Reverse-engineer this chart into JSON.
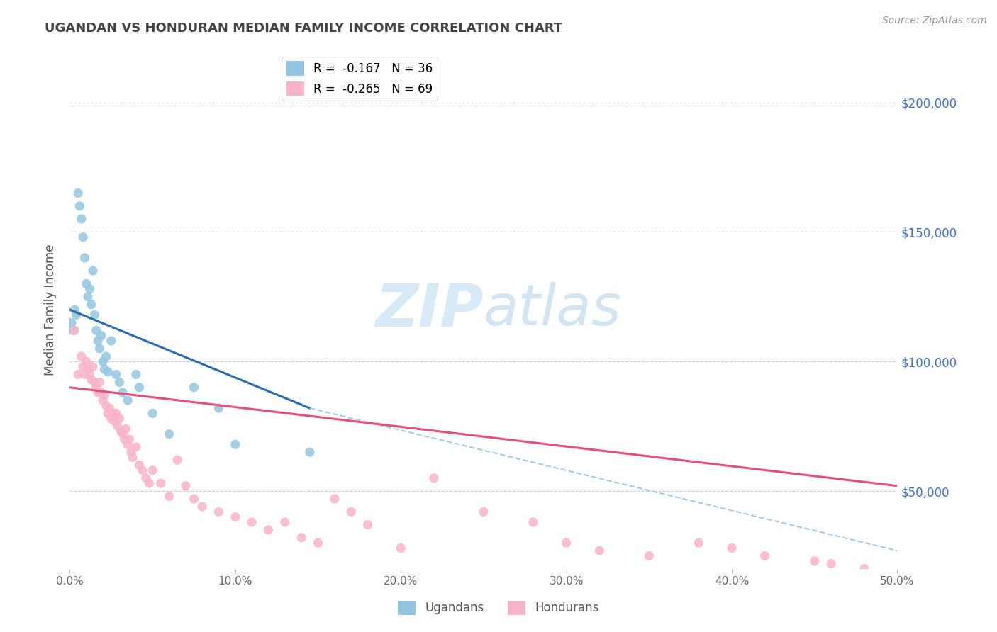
{
  "title": "UGANDAN VS HONDURAN MEDIAN FAMILY INCOME CORRELATION CHART",
  "source": "Source: ZipAtlas.com",
  "ylabel": "Median Family Income",
  "xlim": [
    0.0,
    0.5
  ],
  "ylim": [
    20000,
    220000
  ],
  "xtick_labels": [
    "0.0%",
    "10.0%",
    "20.0%",
    "30.0%",
    "40.0%",
    "50.0%"
  ],
  "xtick_values": [
    0.0,
    0.1,
    0.2,
    0.3,
    0.4,
    0.5
  ],
  "ytick_values": [
    50000,
    100000,
    150000,
    200000
  ],
  "right_ytick_labels": [
    "$50,000",
    "$100,000",
    "$150,000",
    "$200,000"
  ],
  "right_ytick_values": [
    50000,
    100000,
    150000,
    200000
  ],
  "ugandan_color": "#93c6e0",
  "honduran_color": "#f8b4c8",
  "trend_ugandan_color": "#2b6cb0",
  "trend_honduran_color": "#e8507a",
  "trend_ext_color": "#a8cce8",
  "background_color": "#ffffff",
  "grid_color": "#cccccc",
  "watermark_zip": "ZIP",
  "watermark_atlas": "atlas",
  "watermark_color": "#d8eaf5",
  "title_color": "#444444",
  "right_label_color": "#4472c4",
  "ugandan_x": [
    0.001,
    0.002,
    0.003,
    0.004,
    0.005,
    0.006,
    0.007,
    0.008,
    0.009,
    0.01,
    0.011,
    0.012,
    0.013,
    0.014,
    0.015,
    0.016,
    0.017,
    0.018,
    0.019,
    0.02,
    0.021,
    0.022,
    0.023,
    0.025,
    0.028,
    0.03,
    0.032,
    0.035,
    0.04,
    0.042,
    0.05,
    0.06,
    0.075,
    0.09,
    0.1,
    0.145
  ],
  "ugandan_y": [
    115000,
    112000,
    120000,
    118000,
    165000,
    160000,
    155000,
    148000,
    140000,
    130000,
    125000,
    128000,
    122000,
    135000,
    118000,
    112000,
    108000,
    105000,
    110000,
    100000,
    97000,
    102000,
    96000,
    108000,
    95000,
    92000,
    88000,
    85000,
    95000,
    90000,
    80000,
    72000,
    90000,
    82000,
    68000,
    65000
  ],
  "honduran_x": [
    0.003,
    0.005,
    0.007,
    0.008,
    0.009,
    0.01,
    0.011,
    0.012,
    0.013,
    0.014,
    0.015,
    0.016,
    0.017,
    0.018,
    0.019,
    0.02,
    0.021,
    0.022,
    0.023,
    0.024,
    0.025,
    0.026,
    0.027,
    0.028,
    0.029,
    0.03,
    0.031,
    0.032,
    0.033,
    0.034,
    0.035,
    0.036,
    0.037,
    0.038,
    0.04,
    0.042,
    0.044,
    0.046,
    0.048,
    0.05,
    0.055,
    0.06,
    0.065,
    0.07,
    0.075,
    0.08,
    0.09,
    0.1,
    0.11,
    0.12,
    0.13,
    0.14,
    0.15,
    0.16,
    0.17,
    0.18,
    0.2,
    0.22,
    0.25,
    0.28,
    0.3,
    0.32,
    0.35,
    0.38,
    0.4,
    0.42,
    0.45,
    0.46,
    0.48
  ],
  "honduran_y": [
    112000,
    95000,
    102000,
    98000,
    95000,
    100000,
    97000,
    95000,
    93000,
    98000,
    92000,
    90000,
    88000,
    92000,
    88000,
    85000,
    87000,
    83000,
    80000,
    82000,
    78000,
    80000,
    77000,
    80000,
    75000,
    78000,
    73000,
    72000,
    70000,
    74000,
    68000,
    70000,
    65000,
    63000,
    67000,
    60000,
    58000,
    55000,
    53000,
    58000,
    53000,
    48000,
    62000,
    52000,
    47000,
    44000,
    42000,
    40000,
    38000,
    35000,
    38000,
    32000,
    30000,
    47000,
    42000,
    37000,
    28000,
    55000,
    42000,
    38000,
    30000,
    27000,
    25000,
    30000,
    28000,
    25000,
    23000,
    22000,
    20000
  ],
  "trend_ugandan_x0": 0.0,
  "trend_ugandan_y0": 120000,
  "trend_ugandan_x1": 0.145,
  "trend_ugandan_y1": 82000,
  "trend_ugandan_ext_x1": 0.5,
  "trend_ugandan_ext_y1": 27000,
  "trend_honduran_x0": 0.0,
  "trend_honduran_y0": 90000,
  "trend_honduran_x1": 0.5,
  "trend_honduran_y1": 52000
}
